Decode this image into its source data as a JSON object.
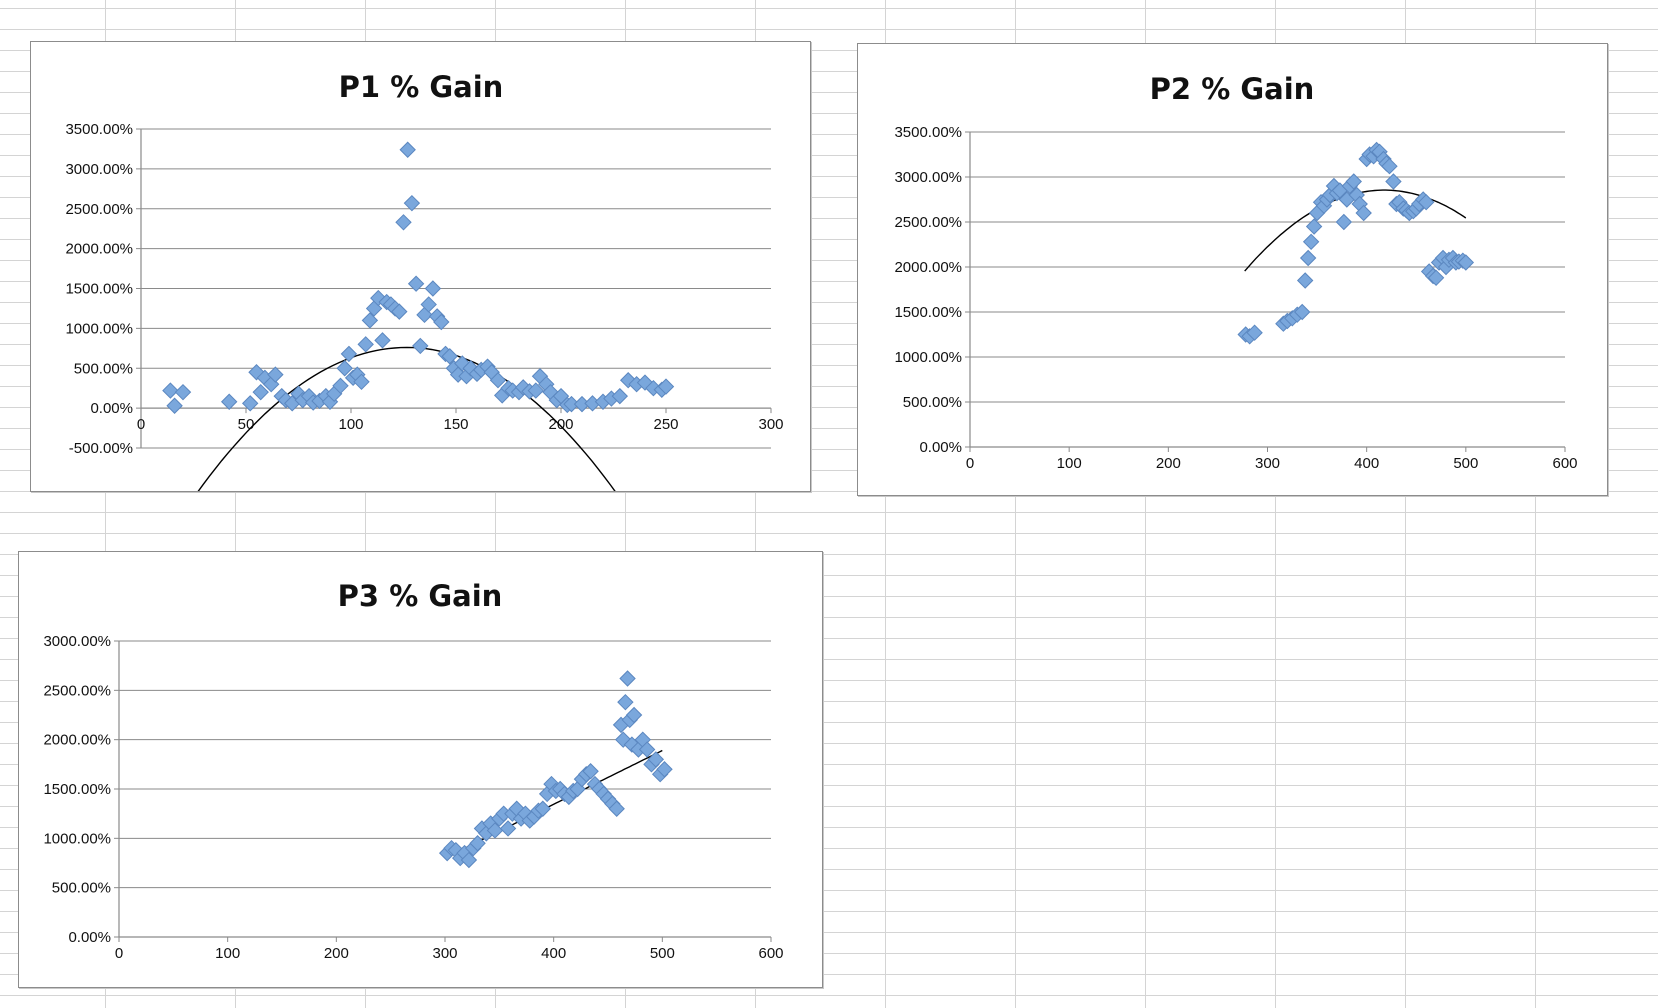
{
  "colors": {
    "marker": "#7aa7dc",
    "marker_edge": "#5b87c0",
    "gridline": "#8a8a8a",
    "trendline": "#000000"
  },
  "chart_data": [
    {
      "type": "scatter",
      "title": "P1 % Gain",
      "xlabel": "",
      "ylabel": "",
      "xlim": [
        0,
        300
      ],
      "ylim": [
        -500,
        3500
      ],
      "xticks": [
        0,
        50,
        100,
        150,
        200,
        250,
        300
      ],
      "yticks": [
        -500,
        0,
        500,
        1000,
        1500,
        2000,
        2500,
        3000,
        3500
      ],
      "xtick_labels": [
        "0",
        "50",
        "100",
        "150",
        "200",
        "250",
        "300"
      ],
      "ytick_labels": [
        "-500.00%",
        "0.00%",
        "500.00%",
        "1000.00%",
        "1500.00%",
        "2000.00%",
        "2500.00%",
        "3000.00%",
        "3500.00%"
      ],
      "series": [
        {
          "name": "P1 % Gain",
          "x": [
            14,
            16,
            20,
            42,
            52,
            55,
            57,
            59,
            62,
            64,
            67,
            69,
            72,
            75,
            77,
            80,
            82,
            85,
            88,
            90,
            92,
            95,
            97,
            99,
            101,
            103,
            105,
            107,
            109,
            111,
            113,
            115,
            117,
            119,
            121,
            123,
            125,
            127,
            129,
            131,
            133,
            135,
            137,
            139,
            141,
            143,
            145,
            147,
            149,
            151,
            153,
            155,
            157,
            160,
            162,
            165,
            167,
            170,
            172,
            175,
            177,
            180,
            182,
            185,
            188,
            190,
            193,
            195,
            198,
            200,
            203,
            205,
            210,
            215,
            220,
            224,
            228,
            232,
            236,
            240,
            244,
            248,
            250
          ],
          "y": [
            220,
            30,
            200,
            80,
            60,
            450,
            200,
            380,
            300,
            420,
            150,
            100,
            60,
            180,
            100,
            150,
            70,
            90,
            150,
            80,
            180,
            280,
            500,
            680,
            380,
            420,
            330,
            800,
            1100,
            1250,
            1380,
            850,
            1330,
            1300,
            1250,
            1210,
            2330,
            3240,
            2570,
            1560,
            780,
            1170,
            1300,
            1500,
            1150,
            1080,
            680,
            650,
            500,
            420,
            560,
            400,
            500,
            430,
            480,
            520,
            450,
            350,
            160,
            250,
            220,
            200,
            260,
            210,
            220,
            400,
            300,
            200,
            100,
            150,
            40,
            50,
            50,
            60,
            80,
            120,
            150,
            350,
            300,
            320,
            250,
            230,
            270
          ]
        }
      ],
      "trendline": {
        "type": "polynomial",
        "order": 2,
        "x_range": [
          15,
          250
        ],
        "coefficients": [
          -0.183,
          46.3,
          -2168
        ]
      }
    },
    {
      "type": "scatter",
      "title": "P2 % Gain",
      "xlabel": "",
      "ylabel": "",
      "xlim": [
        0,
        600
      ],
      "ylim": [
        0,
        3500
      ],
      "xticks": [
        0,
        100,
        200,
        300,
        400,
        500,
        600
      ],
      "yticks": [
        0,
        500,
        1000,
        1500,
        2000,
        2500,
        3000,
        3500
      ],
      "xtick_labels": [
        "0",
        "100",
        "200",
        "300",
        "400",
        "500",
        "600"
      ],
      "ytick_labels": [
        "0.00%",
        "500.00%",
        "1000.00%",
        "1500.00%",
        "2000.00%",
        "2500.00%",
        "3000.00%",
        "3500.00%"
      ],
      "series": [
        {
          "name": "P2 % Gain",
          "x": [
            278,
            282,
            287,
            316,
            320,
            325,
            330,
            335,
            338,
            341,
            344,
            347,
            350,
            354,
            357,
            360,
            363,
            367,
            370,
            373,
            377,
            380,
            383,
            387,
            390,
            393,
            397,
            400,
            403,
            407,
            410,
            413,
            417,
            420,
            423,
            427,
            430,
            433,
            437,
            440,
            443,
            447,
            450,
            453,
            457,
            460,
            463,
            467,
            470,
            473,
            477,
            480,
            483,
            487,
            490,
            493,
            497,
            500
          ],
          "y": [
            1250,
            1230,
            1270,
            1370,
            1400,
            1430,
            1470,
            1500,
            1850,
            2100,
            2280,
            2450,
            2600,
            2720,
            2680,
            2750,
            2800,
            2900,
            2820,
            2850,
            2500,
            2750,
            2900,
            2950,
            2800,
            2700,
            2600,
            3200,
            3250,
            3230,
            3300,
            3280,
            3200,
            3150,
            3120,
            2950,
            2700,
            2720,
            2650,
            2630,
            2600,
            2620,
            2650,
            2700,
            2750,
            2720,
            1950,
            1900,
            1880,
            2050,
            2100,
            2000,
            2080,
            2100,
            2050,
            2060,
            2070,
            2050
          ]
        }
      ],
      "trendline": {
        "type": "polynomial",
        "order": 2,
        "x_range": [
          277,
          500
        ],
        "coefficients": [
          -0.0455,
          38.0,
          -5080
        ]
      }
    },
    {
      "type": "scatter",
      "title": "P3 % Gain",
      "xlabel": "",
      "ylabel": "",
      "xlim": [
        0,
        600
      ],
      "ylim": [
        0,
        3000
      ],
      "xticks": [
        0,
        100,
        200,
        300,
        400,
        500,
        600
      ],
      "yticks": [
        0,
        500,
        1000,
        1500,
        2000,
        2500,
        3000
      ],
      "xtick_labels": [
        "0",
        "100",
        "200",
        "300",
        "400",
        "500",
        "600"
      ],
      "ytick_labels": [
        "0.00%",
        "500.00%",
        "1000.00%",
        "1500.00%",
        "2000.00%",
        "2500.00%",
        "3000.00%"
      ],
      "series": [
        {
          "name": "P3 % Gain",
          "x": [
            302,
            306,
            310,
            314,
            318,
            322,
            326,
            330,
            334,
            338,
            342,
            346,
            350,
            354,
            358,
            362,
            366,
            370,
            374,
            378,
            382,
            386,
            390,
            394,
            398,
            402,
            406,
            410,
            414,
            418,
            422,
            426,
            430,
            434,
            438,
            442,
            446,
            450,
            454,
            458,
            462,
            464,
            466,
            468,
            470,
            472,
            474,
            478,
            482,
            486,
            490,
            494,
            498,
            502
          ],
          "y": [
            850,
            900,
            880,
            800,
            850,
            780,
            900,
            950,
            1100,
            1050,
            1150,
            1080,
            1200,
            1250,
            1100,
            1250,
            1300,
            1200,
            1250,
            1180,
            1220,
            1280,
            1300,
            1450,
            1550,
            1480,
            1500,
            1450,
            1420,
            1480,
            1500,
            1600,
            1650,
            1680,
            1550,
            1500,
            1450,
            1400,
            1350,
            1300,
            2150,
            2000,
            2380,
            2620,
            2200,
            1950,
            2250,
            1900,
            2000,
            1900,
            1750,
            1800,
            1650,
            1700
          ]
        }
      ],
      "trendline": {
        "type": "linear",
        "x_range": [
          300,
          500
        ],
        "coefficients": [
          5.45,
          -835
        ]
      }
    }
  ]
}
